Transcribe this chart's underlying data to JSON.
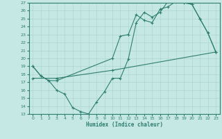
{
  "xlabel": "Humidex (Indice chaleur)",
  "xlim": [
    -0.5,
    23.5
  ],
  "ylim": [
    13,
    27
  ],
  "yticks": [
    13,
    14,
    15,
    16,
    17,
    18,
    19,
    20,
    21,
    22,
    23,
    24,
    25,
    26,
    27
  ],
  "xticks": [
    0,
    1,
    2,
    3,
    4,
    5,
    6,
    7,
    8,
    9,
    10,
    11,
    12,
    13,
    14,
    15,
    16,
    17,
    18,
    19,
    20,
    21,
    22,
    23
  ],
  "bg_color": "#c5e8e4",
  "line_color": "#2e7d6e",
  "grid_color": "#aed6d0",
  "line1_x": [
    0,
    1,
    2,
    3,
    10,
    11,
    12,
    13,
    14,
    15,
    16,
    17,
    18,
    19,
    20,
    21,
    22,
    23
  ],
  "line1_y": [
    19,
    17.8,
    17.2,
    17.2,
    20.0,
    22.8,
    23.0,
    25.5,
    24.8,
    24.5,
    26.2,
    26.5,
    27.2,
    27.0,
    26.8,
    25.0,
    23.2,
    20.8
  ],
  "line2_x": [
    0,
    1,
    2,
    3,
    4,
    5,
    6,
    7,
    8,
    9,
    10,
    11,
    12,
    13,
    14,
    15,
    16,
    17,
    18,
    19,
    20,
    21,
    22,
    23
  ],
  "line2_y": [
    19.0,
    17.8,
    17.2,
    16.0,
    15.5,
    13.8,
    13.3,
    13.0,
    14.5,
    15.8,
    17.5,
    17.5,
    19.9,
    24.5,
    25.8,
    25.2,
    25.8,
    27.2,
    27.5,
    27.2,
    26.8,
    25.0,
    23.2,
    20.8
  ],
  "line3_x": [
    0,
    3,
    10,
    23
  ],
  "line3_y": [
    17.5,
    17.5,
    18.5,
    20.8
  ]
}
